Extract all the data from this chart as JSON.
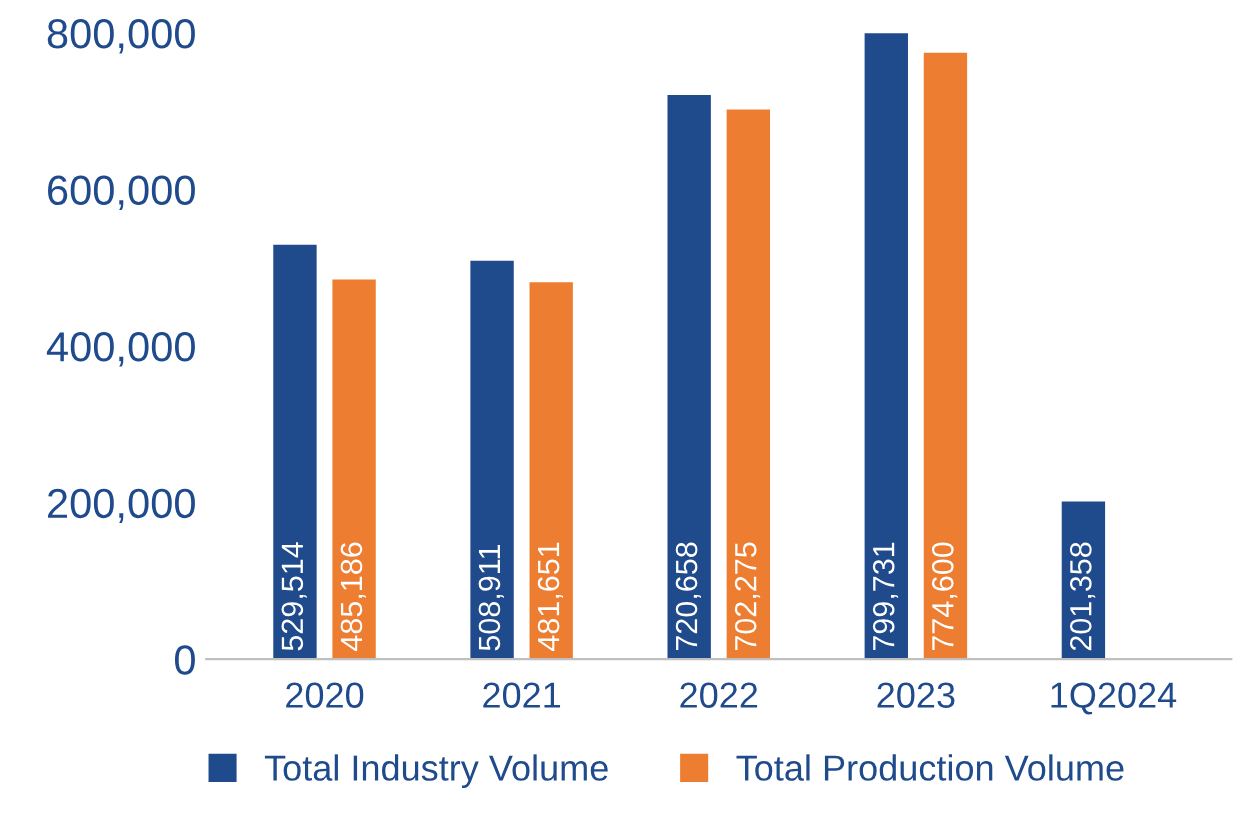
{
  "chart_data": {
    "type": "bar",
    "categories": [
      "2020",
      "2021",
      "2022",
      "2023",
      "1Q2024"
    ],
    "series": [
      {
        "name": "Total Industry Volume",
        "color": "#1f4a8c",
        "values": [
          529514,
          508911,
          720658,
          799731,
          201358
        ],
        "value_labels": [
          "529,514",
          "508,911",
          "720,658",
          "799,731",
          "201,358"
        ]
      },
      {
        "name": "Total Production Volume",
        "color": "#ed7d31",
        "values": [
          485186,
          481651,
          702275,
          774600,
          null
        ],
        "value_labels": [
          "485,186",
          "481,651",
          "702,275",
          "774,600",
          null
        ]
      }
    ],
    "ylim": [
      0,
      800000
    ],
    "yticks": [
      0,
      {
        "value": 200000,
        "label": "200,000"
      },
      {
        "value": 400000,
        "label": "400,000"
      },
      {
        "value": 600000,
        "label": "600,000"
      },
      {
        "value": 800000,
        "label": "800,000"
      }
    ],
    "grid": false,
    "legend": "bottom"
  }
}
